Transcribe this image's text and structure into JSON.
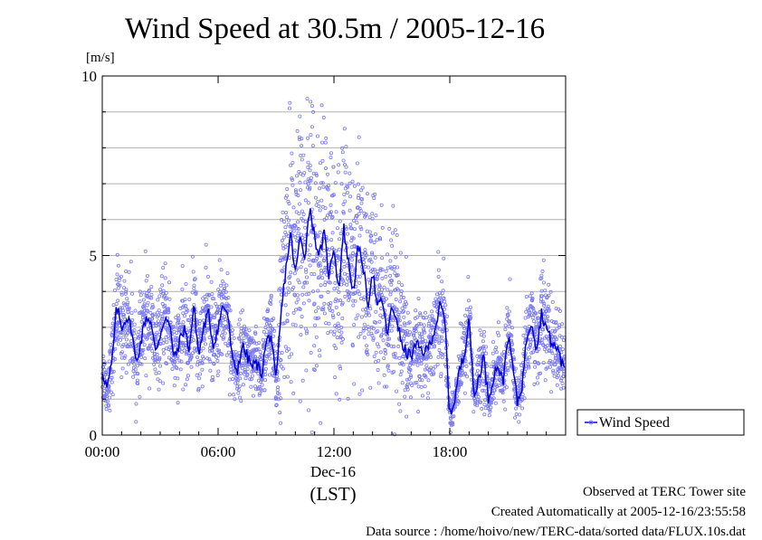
{
  "chart_data": {
    "type": "scatter",
    "title": "Wind Speed at 30.5m / 2005-12-16",
    "ylabel": "[m/s]",
    "xlabel": "(LST)",
    "x_sub_label": "Dec-16",
    "ylim": [
      0,
      10
    ],
    "xlim_hours": [
      0,
      24
    ],
    "y_ticks": [
      "0",
      "5",
      "10"
    ],
    "x_ticks": [
      "00:00",
      "06:00",
      "12:00",
      "18:00"
    ],
    "grid": "horizontal",
    "legend_placement": "right",
    "series": [
      {
        "name": "Wind Speed",
        "color_line": "#0000dd",
        "color_points": "#7b7bf0",
        "mean_x": [
          0,
          0.25,
          0.5,
          0.75,
          1,
          1.25,
          1.5,
          1.75,
          2,
          2.25,
          2.5,
          2.75,
          3,
          3.25,
          3.5,
          3.75,
          4,
          4.25,
          4.5,
          4.75,
          5,
          5.25,
          5.5,
          5.75,
          6,
          6.25,
          6.5,
          6.75,
          7,
          7.25,
          7.5,
          7.75,
          8,
          8.25,
          8.5,
          8.75,
          9,
          9.25,
          9.5,
          9.75,
          10,
          10.25,
          10.5,
          10.75,
          11,
          11.25,
          11.5,
          11.75,
          12,
          12.25,
          12.5,
          12.75,
          13,
          13.25,
          13.5,
          13.75,
          14,
          14.25,
          14.5,
          14.75,
          15,
          15.25,
          15.5,
          15.75,
          16,
          16.25,
          16.5,
          16.75,
          17,
          17.25,
          17.5,
          17.75,
          18,
          18.25,
          18.5,
          18.75,
          19,
          19.25,
          19.5,
          19.75,
          20,
          20.25,
          20.5,
          20.75,
          21,
          21.25,
          21.5,
          21.75,
          22,
          22.25,
          22.5,
          22.75,
          23,
          23.25,
          23.5,
          23.75
        ],
        "mean_y": [
          1.8,
          1.3,
          2.0,
          3.6,
          3.0,
          3.3,
          3.0,
          2.0,
          2.6,
          3.3,
          3.2,
          2.3,
          2.8,
          3.3,
          3.0,
          2.1,
          2.6,
          3.0,
          2.4,
          3.6,
          2.2,
          3.0,
          3.4,
          2.5,
          3.0,
          3.6,
          3.4,
          2.0,
          1.8,
          2.5,
          2.2,
          1.9,
          2.0,
          1.7,
          2.6,
          2.8,
          1.4,
          3.3,
          4.6,
          5.6,
          4.5,
          5.5,
          5.0,
          6.4,
          5.5,
          5.0,
          5.6,
          4.4,
          5.3,
          4.0,
          5.8,
          4.8,
          4.0,
          5.2,
          4.8,
          3.6,
          4.6,
          3.5,
          3.8,
          2.8,
          3.5,
          3.3,
          2.5,
          2.3,
          2.2,
          2.5,
          2.4,
          2.3,
          2.6,
          3.0,
          3.6,
          3.2,
          0.5,
          1.0,
          1.8,
          2.2,
          3.4,
          1.0,
          1.6,
          2.2,
          1.0,
          1.6,
          2.0,
          1.4,
          2.8,
          2.0,
          0.9,
          1.4,
          2.8,
          3.2,
          2.4,
          3.4,
          3.0,
          2.6,
          2.4,
          2.3,
          2.2,
          2.0
        ]
      }
    ],
    "source_lines": [
      "Observed at TERC Tower site",
      "Created Automatically at 2005-12-16/23:55:58",
      "Data source : /home/hoivo/new/TERC-data/sorted  data/FLUX.10s.dat"
    ]
  }
}
